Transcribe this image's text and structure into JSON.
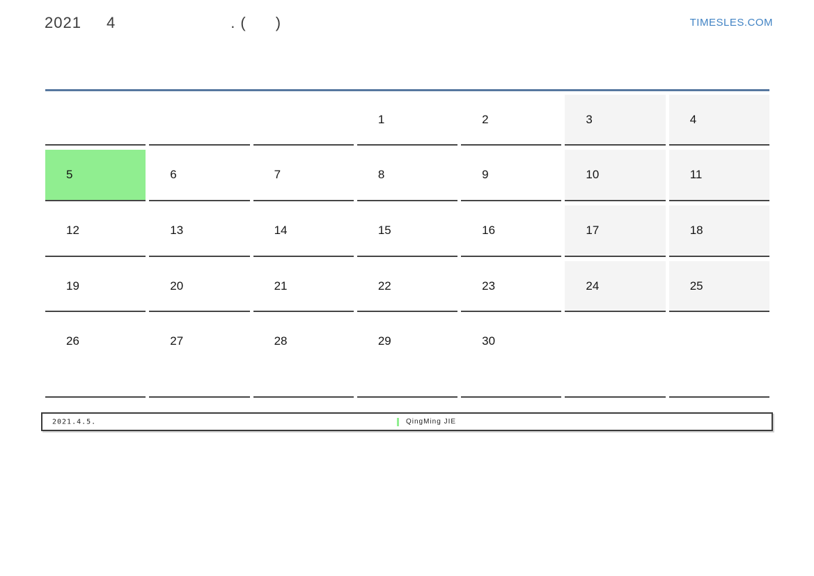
{
  "header": {
    "title_segments": [
      "2021",
      "4",
      ". (",
      ")"
    ],
    "site": "TIMESLES.COM"
  },
  "calendar": {
    "month": "April",
    "year": "2021",
    "weeks": [
      [
        {
          "day": ""
        },
        {
          "day": ""
        },
        {
          "day": ""
        },
        {
          "day": "1"
        },
        {
          "day": "2"
        },
        {
          "day": "3",
          "weekend": true
        },
        {
          "day": "4",
          "weekend": true
        }
      ],
      [
        {
          "day": "5",
          "holiday": true
        },
        {
          "day": "6"
        },
        {
          "day": "7"
        },
        {
          "day": "8"
        },
        {
          "day": "9"
        },
        {
          "day": "10",
          "weekend": true
        },
        {
          "day": "11",
          "weekend": true
        }
      ],
      [
        {
          "day": "12"
        },
        {
          "day": "13"
        },
        {
          "day": "14"
        },
        {
          "day": "15"
        },
        {
          "day": "16"
        },
        {
          "day": "17",
          "weekend": true
        },
        {
          "day": "18",
          "weekend": true
        }
      ],
      [
        {
          "day": "19"
        },
        {
          "day": "20"
        },
        {
          "day": "21"
        },
        {
          "day": "22"
        },
        {
          "day": "23"
        },
        {
          "day": "24",
          "weekend": true
        },
        {
          "day": "25",
          "weekend": true
        }
      ],
      [
        {
          "day": "26"
        },
        {
          "day": "27"
        },
        {
          "day": "28"
        },
        {
          "day": "29"
        },
        {
          "day": "30"
        },
        {
          "day": ""
        },
        {
          "day": ""
        }
      ]
    ]
  },
  "legend": {
    "date": "2021.4.5.",
    "holiday_name": "QingMing JIE"
  },
  "colors": {
    "accent_line": "#56779f",
    "holiday_green": "#90ee90",
    "weekend_gray": "#f4f4f4",
    "link_blue": "#4183c4",
    "border_dark": "#454545"
  }
}
